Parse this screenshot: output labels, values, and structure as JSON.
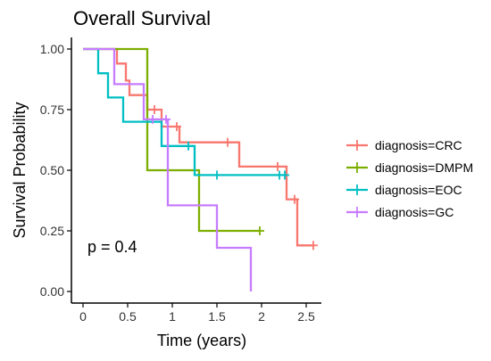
{
  "chart_data": {
    "type": "line",
    "title": "Overall Survival",
    "xlabel": "Time (years)",
    "ylabel": "Survival Probability",
    "xlim": [
      0,
      2.6
    ],
    "ylim": [
      0,
      1.0
    ],
    "x_ticks": [
      0,
      0.5,
      1,
      1.5,
      2,
      2.5
    ],
    "x_tick_labels": [
      "0",
      "0.5",
      "1",
      "1.5",
      "2",
      "2.5"
    ],
    "y_ticks": [
      0,
      0.25,
      0.5,
      0.75,
      1.0
    ],
    "y_tick_labels": [
      "0.00",
      "0.25",
      "0.50",
      "0.75",
      "1.00"
    ],
    "grid": false,
    "legend_position": "right",
    "annotation": "p = 0.4",
    "series": [
      {
        "name": "diagnosis=CRC",
        "color": "#F8766D",
        "steps": [
          [
            0,
            1.0
          ],
          [
            0.38,
            1.0
          ],
          [
            0.38,
            0.94
          ],
          [
            0.48,
            0.94
          ],
          [
            0.48,
            0.87
          ],
          [
            0.52,
            0.87
          ],
          [
            0.52,
            0.81
          ],
          [
            0.72,
            0.81
          ],
          [
            0.72,
            0.75
          ],
          [
            0.88,
            0.75
          ],
          [
            0.88,
            0.68
          ],
          [
            1.08,
            0.68
          ],
          [
            1.08,
            0.615
          ],
          [
            1.75,
            0.615
          ],
          [
            1.75,
            0.515
          ],
          [
            2.28,
            0.515
          ],
          [
            2.28,
            0.38
          ],
          [
            2.4,
            0.38
          ],
          [
            2.4,
            0.19
          ],
          [
            2.58,
            0.19
          ]
        ],
        "censored": [
          [
            0.8,
            0.75
          ],
          [
            1.05,
            0.68
          ],
          [
            1.62,
            0.615
          ],
          [
            2.18,
            0.515
          ],
          [
            2.37,
            0.38
          ],
          [
            2.58,
            0.19
          ]
        ]
      },
      {
        "name": "diagnosis=DMPM",
        "color": "#7CAE00",
        "steps": [
          [
            0,
            1.0
          ],
          [
            0.72,
            1.0
          ],
          [
            0.72,
            0.5
          ],
          [
            1.3,
            0.5
          ],
          [
            1.3,
            0.25
          ],
          [
            1.98,
            0.25
          ]
        ],
        "censored": [
          [
            1.98,
            0.25
          ]
        ]
      },
      {
        "name": "diagnosis=EOC",
        "color": "#00BFC4",
        "steps": [
          [
            0,
            1.0
          ],
          [
            0.17,
            1.0
          ],
          [
            0.17,
            0.9
          ],
          [
            0.28,
            0.9
          ],
          [
            0.28,
            0.8
          ],
          [
            0.45,
            0.8
          ],
          [
            0.45,
            0.7
          ],
          [
            0.88,
            0.7
          ],
          [
            0.88,
            0.6
          ],
          [
            1.25,
            0.6
          ],
          [
            1.25,
            0.48
          ],
          [
            2.28,
            0.48
          ]
        ],
        "censored": [
          [
            1.18,
            0.6
          ],
          [
            1.5,
            0.48
          ],
          [
            2.2,
            0.48
          ],
          [
            2.26,
            0.48
          ]
        ]
      },
      {
        "name": "diagnosis=GC",
        "color": "#C77CFF",
        "steps": [
          [
            0,
            1.0
          ],
          [
            0.35,
            1.0
          ],
          [
            0.35,
            0.855
          ],
          [
            0.68,
            0.855
          ],
          [
            0.68,
            0.71
          ],
          [
            0.95,
            0.71
          ],
          [
            0.95,
            0.355
          ],
          [
            1.5,
            0.355
          ],
          [
            1.5,
            0.18
          ],
          [
            1.88,
            0.18
          ],
          [
            1.88,
            0.0
          ]
        ],
        "censored": [
          [
            0.78,
            0.71
          ],
          [
            0.93,
            0.71
          ]
        ]
      }
    ]
  }
}
